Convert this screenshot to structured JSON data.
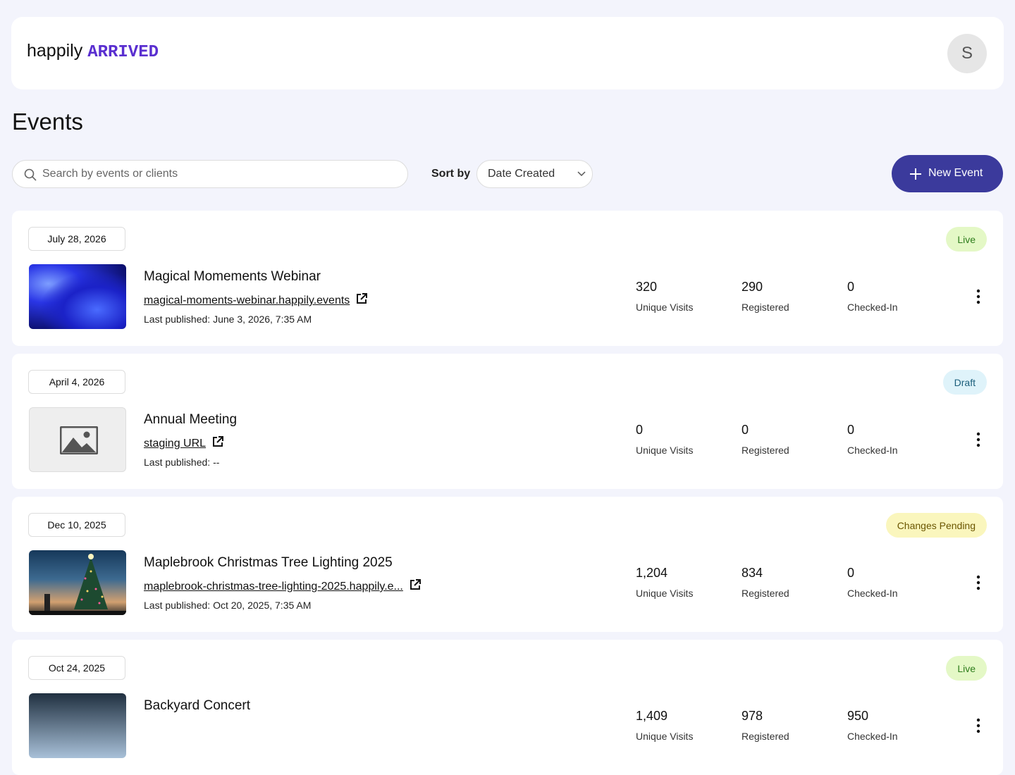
{
  "header": {
    "logo_main": "happily",
    "logo_accent": "ARRIVED",
    "avatar": "S"
  },
  "page_title": "Events",
  "toolbar": {
    "search_placeholder": "Search by events or clients",
    "sort_label": "Sort by",
    "sort_value": "Date Created",
    "new_button": "New Event"
  },
  "events": [
    {
      "date": "July 28, 2026",
      "status": "Live",
      "status_style": {
        "bg": "#e4f8c6",
        "fg": "#2e7d1c"
      },
      "thumbnail": "abstract",
      "title": "Magical Momements Webinar",
      "link": "magical-moments-webinar.happily.events",
      "last_published": "Last published: June 3, 2026, 7:35 AM",
      "stats": [
        {
          "value": "320",
          "label": "Unique Visits"
        },
        {
          "value": "290",
          "label": "Registered"
        },
        {
          "value": "0",
          "label": "Checked-In"
        }
      ]
    },
    {
      "date": "April 4, 2026",
      "status": "Draft",
      "status_style": {
        "bg": "#dff3fa",
        "fg": "#1c5f7c"
      },
      "thumbnail": "placeholder",
      "title": "Annual Meeting",
      "link": "staging URL",
      "last_published": "Last published: --",
      "stats": [
        {
          "value": "0",
          "label": "Unique Visits"
        },
        {
          "value": "0",
          "label": "Registered"
        },
        {
          "value": "0",
          "label": "Checked-In"
        }
      ]
    },
    {
      "date": "Dec 10, 2025",
      "status": "Changes Pending",
      "status_style": {
        "bg": "#faf6bd",
        "fg": "#6b5600"
      },
      "thumbnail": "tree",
      "title": "Maplebrook Christmas Tree Lighting 2025",
      "link": "maplebrook-christmas-tree-lighting-2025.happily.e...",
      "last_published": "Last published: Oct 20, 2025, 7:35 AM",
      "stats": [
        {
          "value": "1,204",
          "label": "Unique Visits"
        },
        {
          "value": "834",
          "label": "Registered"
        },
        {
          "value": "0",
          "label": "Checked-In"
        }
      ]
    },
    {
      "date": "Oct 24, 2025",
      "status": "Live",
      "status_style": {
        "bg": "#e4f8c6",
        "fg": "#2e7d1c"
      },
      "thumbnail": "concert",
      "title": "Backyard Concert",
      "stats": [
        {
          "value": "1,409",
          "label": "Unique Visits"
        },
        {
          "value": "978",
          "label": "Registered"
        },
        {
          "value": "950",
          "label": "Checked-In"
        }
      ]
    }
  ]
}
